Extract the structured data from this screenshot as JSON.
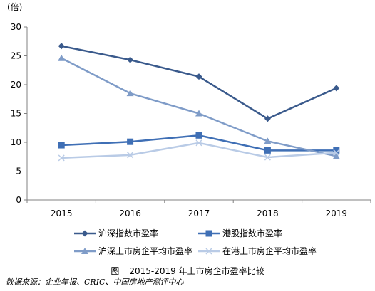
{
  "chart_data": {
    "type": "line",
    "unit_label": "(倍)",
    "categories": [
      "2015",
      "2016",
      "2017",
      "2018",
      "2019"
    ],
    "ylim": [
      0,
      30
    ],
    "yticks": [
      0,
      5,
      10,
      15,
      20,
      25,
      30
    ],
    "grid": false,
    "legend_position": "bottom",
    "series": [
      {
        "name": "沪深指数市盈率",
        "color": "#3a5a8c",
        "marker": "diamond",
        "values": [
          26.7,
          24.3,
          21.4,
          14.1,
          19.4
        ]
      },
      {
        "name": "港股指数市盈率",
        "color": "#3f6fb5",
        "marker": "square",
        "values": [
          9.5,
          10.1,
          11.2,
          8.6,
          8.6
        ]
      },
      {
        "name": "沪深上市房企平均市盈率",
        "color": "#7f9cc8",
        "marker": "triangle",
        "values": [
          24.6,
          18.5,
          15.0,
          10.2,
          7.6
        ]
      },
      {
        "name": "在港上市房企平均市盈率",
        "color": "#b9cbe6",
        "marker": "cross",
        "values": [
          7.3,
          7.8,
          9.9,
          7.4,
          8.2
        ]
      }
    ]
  },
  "caption": {
    "label": "图",
    "text": "2015-2019 年上市房企市盈率比较"
  },
  "source": "数据来源：企业年报、CRIC、中国房地产测评中心"
}
